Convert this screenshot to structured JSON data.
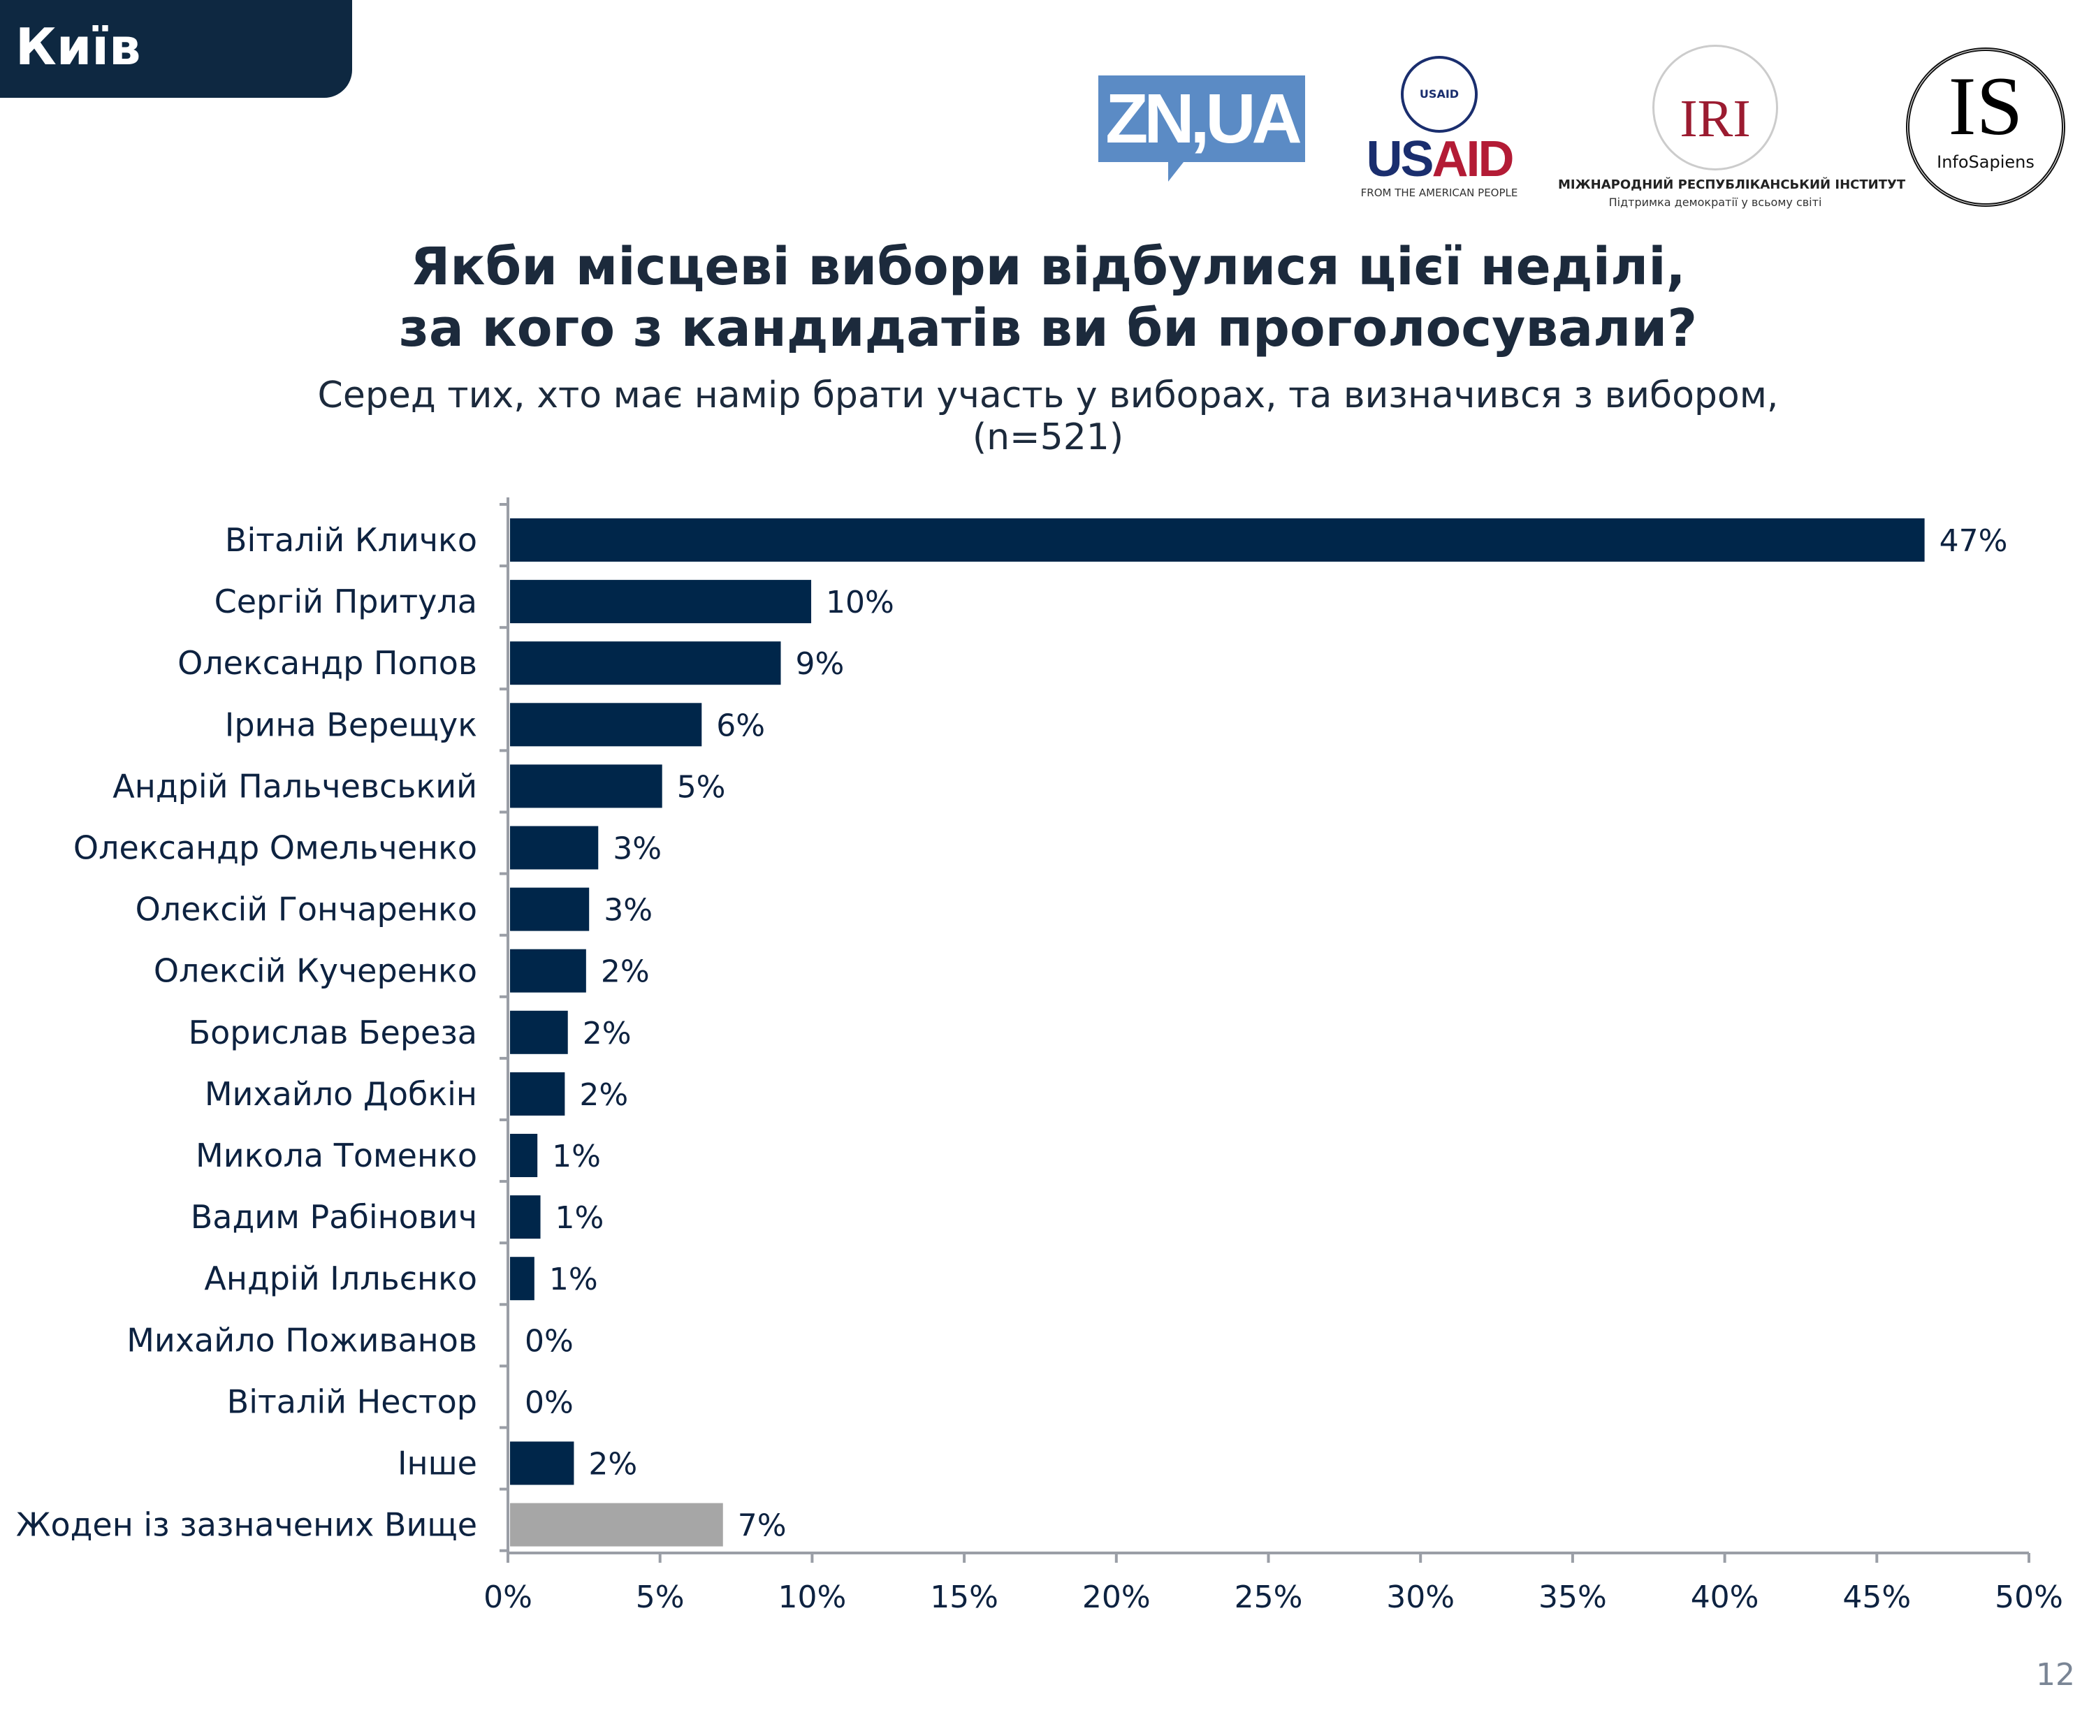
{
  "region_tab": "Київ",
  "logos": {
    "zn": "ZN,UA",
    "usaid": {
      "seal": "USAID",
      "us": "US",
      "aid": "AID",
      "tagline": "FROM THE AMERICAN PEOPLE"
    },
    "iri": {
      "mark": "IRI",
      "name": "МІЖНАРОДНИЙ РЕСПУБЛІКАНСЬКИЙ ІНСТИТУТ",
      "tagline": "Підтримка демократії у всьому світі"
    },
    "infosapiens": {
      "mark": "IS",
      "name": "InfoSapiens"
    }
  },
  "page_number": "12",
  "chart_data": {
    "type": "bar",
    "orientation": "horizontal",
    "title": [
      "Якби місцеві вибори відбулися цієї неділі,",
      "за кого з кандидатів ви би проголосували?"
    ],
    "subtitle": [
      "Серед тих, хто має намір брати участь у виборах, та визначився з вибором,",
      "(n=521)"
    ],
    "categories": [
      "Віталій Кличко",
      "Сергій Притула",
      "Олександр Попов",
      "Ірина Верещук",
      "Андрій Пальчевський",
      "Олександр Омельченко",
      "Олексій Гончаренко",
      "Олексій Кучеренко",
      "Борислав Береза",
      "Михайло Добкін",
      "Микола Томенко",
      "Вадим Рабінович",
      "Андрій Ілльєнко",
      "Михайло Поживанов",
      "Віталій Нестор",
      "Інше",
      "Жоден із зазначених Вище"
    ],
    "values": [
      46.5,
      9.9,
      8.9,
      6.3,
      5.0,
      2.9,
      2.6,
      2.5,
      1.9,
      1.8,
      0.9,
      1.0,
      0.8,
      0,
      0,
      2.1,
      7.0
    ],
    "data_labels": [
      "47%",
      "10%",
      "9%",
      "6%",
      "5%",
      "3%",
      "3%",
      "2%",
      "2%",
      "2%",
      "1%",
      "1%",
      "1%",
      "0%",
      "0%",
      "2%",
      "7%"
    ],
    "bar_colors": [
      "#00264a",
      "#00264a",
      "#00264a",
      "#00264a",
      "#00264a",
      "#00264a",
      "#00264a",
      "#00264a",
      "#00264a",
      "#00264a",
      "#00264a",
      "#00264a",
      "#00264a",
      "#00264a",
      "#00264a",
      "#00264a",
      "#a6a6a6"
    ],
    "xlim": [
      0,
      50
    ],
    "xticks": [
      "0%",
      "5%",
      "10%",
      "15%",
      "20%",
      "25%",
      "30%",
      "35%",
      "40%",
      "45%",
      "50%"
    ],
    "xlabel": "",
    "ylabel": "",
    "grid": false
  }
}
